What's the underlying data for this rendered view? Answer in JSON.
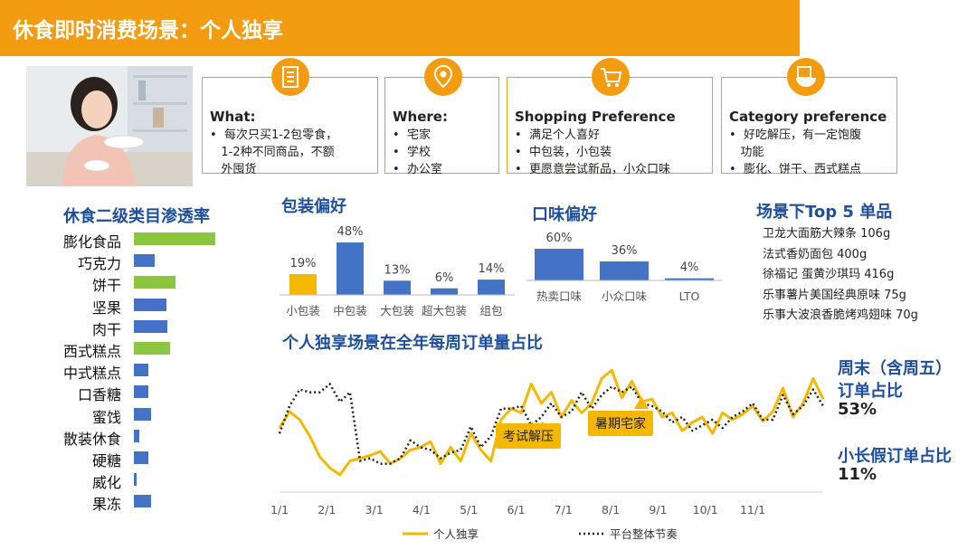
{
  "header": {
    "title": "休食即时消费场景：个人独享"
  },
  "cards": [
    {
      "title": "What:",
      "items": [
        "每次只买1-2包零食，",
        "1-2种不同商品，不额",
        "外囤货"
      ],
      "bullets": [
        true,
        true,
        false
      ],
      "icon": "document-list-icon"
    },
    {
      "title": "Where:",
      "items": [
        "宅家",
        "学校",
        "办公室"
      ],
      "bullets": [
        true,
        true,
        true
      ],
      "icon": "location-pin-icon"
    },
    {
      "title": "Shopping Preference",
      "items": [
        "满足个人喜好",
        "中包装，小包装",
        "更愿意尝试新品，小众口味"
      ],
      "bullets": [
        true,
        true,
        true
      ],
      "icon": "shopping-cart-icon"
    },
    {
      "title": "Category preference",
      "items": [
        "好吃解压，有一定饱腹",
        "功能",
        "膨化、饼干、西式糕点"
      ],
      "bullets": [
        true,
        false,
        true
      ],
      "icon": "food-bowl-icon"
    }
  ],
  "penetration": {
    "title": "休食二级类目渗透率",
    "colors": {
      "highlight": "#8cc63f",
      "normal": "#4472c4"
    },
    "chart_data": {
      "type": "bar",
      "orientation": "horizontal",
      "categories": [
        "膨化食品",
        "巧克力",
        "饼干",
        "坚果",
        "肉干",
        "西式糕点",
        "中式糕点",
        "口香糖",
        "蜜饯",
        "散装休食",
        "硬糖",
        "威化",
        "果冻"
      ],
      "values": [
        90,
        23,
        46,
        36,
        37,
        40,
        16,
        16,
        19,
        6,
        16,
        3,
        19
      ],
      "highlight": [
        true,
        false,
        true,
        false,
        false,
        true,
        false,
        false,
        false,
        false,
        false,
        false,
        false
      ]
    }
  },
  "packaging": {
    "title": "包装偏好",
    "chart_data": {
      "type": "bar",
      "categories": [
        "小包装",
        "中包装",
        "大包装",
        "超大包装",
        "组包"
      ],
      "values": [
        19,
        48,
        13,
        6,
        14
      ],
      "labels": [
        "19%",
        "48%",
        "13%",
        "6%",
        "14%"
      ],
      "colors": [
        "#f5b800",
        "#4472c4",
        "#4472c4",
        "#4472c4",
        "#4472c4"
      ]
    }
  },
  "flavor": {
    "title": "口味偏好",
    "chart_data": {
      "type": "bar",
      "categories": [
        "热卖口味",
        "小众口味",
        "LTO"
      ],
      "values": [
        60,
        36,
        4
      ],
      "labels": [
        "60%",
        "36%",
        "4%"
      ],
      "colors": [
        "#4472c4",
        "#4472c4",
        "#4472c4"
      ]
    }
  },
  "top5": {
    "title": "场景下Top 5 单品",
    "items": [
      "卫龙大面筋大辣条 106g",
      "法式香奶面包 400g",
      "徐福记 蛋黄沙琪玛 416g",
      "乐事薯片美国经典原味 75g",
      "乐事大波浪香脆烤鸡翅味 70g"
    ]
  },
  "weekly": {
    "title": "个人独享场景在全年每周订单量占比",
    "chart_data": {
      "type": "line",
      "x_ticks": [
        "1/1",
        "2/1",
        "3/1",
        "4/1",
        "5/1",
        "6/1",
        "7/1",
        "8/1",
        "9/1",
        "10/1",
        "11/1"
      ],
      "series": [
        {
          "name": "个人独享",
          "color": "#f5b800",
          "style": "solid",
          "values": [
            0.44,
            0.56,
            0.5,
            0.38,
            0.23,
            0.15,
            0.1,
            0.2,
            0.22,
            0.24,
            0.27,
            0.18,
            0.22,
            0.28,
            0.3,
            0.34,
            0.18,
            0.3,
            0.2,
            0.4,
            0.28,
            0.2,
            0.5,
            0.58,
            0.55,
            0.76,
            0.62,
            0.7,
            0.52,
            0.64,
            0.55,
            0.62,
            0.8,
            0.86,
            0.66,
            0.78,
            0.63,
            0.65,
            0.52,
            0.55,
            0.42,
            0.48,
            0.52,
            0.4,
            0.55,
            0.5,
            0.54,
            0.6,
            0.49,
            0.56,
            0.73,
            0.52,
            0.62,
            0.8,
            0.65
          ]
        },
        {
          "name": "平台整体节奏",
          "color": "#222222",
          "style": "dotted",
          "values": [
            0.4,
            0.6,
            0.72,
            0.7,
            0.7,
            0.76,
            0.63,
            0.7,
            0.2,
            0.22,
            0.18,
            0.18,
            0.22,
            0.35,
            0.3,
            0.28,
            0.22,
            0.26,
            0.28,
            0.45,
            0.3,
            0.38,
            0.58,
            0.58,
            0.6,
            0.46,
            0.52,
            0.62,
            0.52,
            0.56,
            0.7,
            0.58,
            0.68,
            0.74,
            0.7,
            0.74,
            0.62,
            0.6,
            0.56,
            0.48,
            0.52,
            0.42,
            0.46,
            0.5,
            0.44,
            0.52,
            0.56,
            0.62,
            0.5,
            0.5,
            0.68,
            0.54,
            0.6,
            0.72,
            0.6
          ]
        }
      ],
      "annotations": [
        "考试解压",
        "暑期宅家"
      ]
    }
  },
  "stats": {
    "weekend_label_1": "周末（含周五）",
    "weekend_label_2": "订单占比",
    "weekend_value": "53%",
    "holiday_label": "小长假订单占比",
    "holiday_value": "11%"
  }
}
